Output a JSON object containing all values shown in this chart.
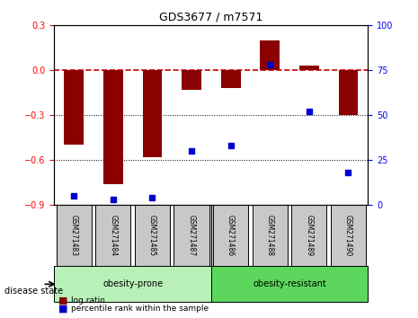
{
  "title": "GDS3677 / m7571",
  "samples": [
    "GSM271483",
    "GSM271484",
    "GSM271485",
    "GSM271487",
    "GSM271486",
    "GSM271488",
    "GSM271489",
    "GSM271490"
  ],
  "log_ratio": [
    -0.5,
    -0.76,
    -0.58,
    -0.13,
    -0.12,
    0.2,
    0.03,
    -0.3
  ],
  "percentile_rank": [
    5,
    3,
    4,
    30,
    33,
    78,
    52,
    18
  ],
  "groups": [
    {
      "label": "obesity-prone",
      "samples": [
        0,
        1,
        2,
        3
      ],
      "color": "#90EE90"
    },
    {
      "label": "obesity-resistant",
      "samples": [
        4,
        5,
        6,
        7
      ],
      "color": "#32CD32"
    }
  ],
  "ylim_left": [
    -0.9,
    0.3
  ],
  "ylim_right": [
    0,
    100
  ],
  "yticks_left": [
    -0.9,
    -0.6,
    -0.3,
    0.0,
    0.3
  ],
  "yticks_right": [
    0,
    25,
    50,
    75,
    100
  ],
  "bar_color": "#8B0000",
  "dot_color": "#0000CD",
  "hline_color": "#CC0000",
  "grid_color": "#000000",
  "bg_color": "#FFFFFF",
  "label_log_ratio": "log ratio",
  "label_percentile": "percentile rank within the sample",
  "disease_state_label": "disease state",
  "group1_color": "#B8F0B8",
  "group2_color": "#5CD65C"
}
